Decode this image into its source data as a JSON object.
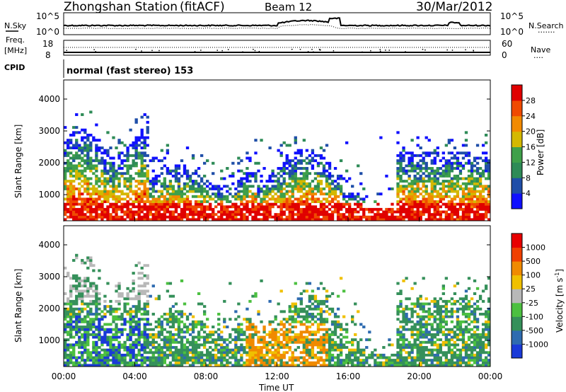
{
  "header": {
    "station": "Zhongshan Station",
    "mode": "(fitACF)",
    "beam": "Beam 12",
    "date": "30/Mar/2012"
  },
  "noise_panel": {
    "left_label": "N.Sky",
    "left_ticks": [
      "10^5",
      "10^0"
    ],
    "right_ticks": [
      "10^5",
      "10^0"
    ],
    "right_label": "N.Search",
    "right_legend": "......."
  },
  "freq_panel": {
    "left_label_1": "Freq.",
    "left_label_2": "[MHz]",
    "left_ticks": [
      "18",
      "8"
    ],
    "right_ticks": [
      "60",
      "0"
    ],
    "right_label": "Nave",
    "right_legend": "...."
  },
  "cpid": {
    "label": "CPID",
    "text": "normal (fast stereo) 153"
  },
  "chart_data": [
    {
      "type": "heatmap",
      "quantity": "Power",
      "ylabel": "Slant Range [km]",
      "ylim": [
        180,
        4600
      ],
      "yticks": [
        "1000",
        "2000",
        "3000",
        "4000"
      ],
      "colorbar": {
        "label": "Power [dB]",
        "ticks": [
          "4",
          "8",
          "12",
          "16",
          "20",
          "24",
          "28"
        ],
        "colors": [
          "#1010ff",
          "#1f4ea8",
          "#2e8b57",
          "#3fa04a",
          "#d4b800",
          "#f28a00",
          "#f04a00",
          "#e00000"
        ]
      }
    },
    {
      "type": "heatmap",
      "quantity": "Velocity",
      "ylabel": "Slant Range [km]",
      "ylim": [
        180,
        4600
      ],
      "yticks": [
        "1000",
        "2000",
        "3000",
        "4000"
      ],
      "xlabel": "Time UT",
      "xticks": [
        "00:00",
        "04:00",
        "08:00",
        "12:00",
        "16:00",
        "20:00",
        "00:00"
      ],
      "colorbar": {
        "label": "Velocity [m s",
        "label_exp": "-1",
        "label_end": "]",
        "ticks": [
          "1000",
          "500",
          "100",
          "25",
          "-25",
          "-100",
          "-500",
          "-1000"
        ],
        "colors": [
          "#1a3ad8",
          "#2e6bb0",
          "#35905a",
          "#4cc040",
          "#b8b8b8",
          "#f0c000",
          "#f08a00",
          "#f04000",
          "#e80000"
        ]
      }
    }
  ]
}
